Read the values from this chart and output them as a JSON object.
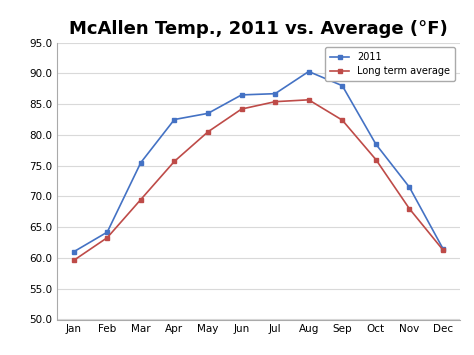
{
  "title": "McAllen Temp., 2011 vs. Average (°F)",
  "months": [
    "Jan",
    "Feb",
    "Mar",
    "Apr",
    "May",
    "Jun",
    "Jul",
    "Aug",
    "Sep",
    "Oct",
    "Nov",
    "Dec"
  ],
  "data_2011": [
    61.0,
    64.2,
    75.5,
    82.5,
    83.5,
    86.5,
    86.7,
    90.3,
    88.0,
    78.5,
    71.5,
    61.5
  ],
  "data_avg": [
    59.6,
    63.3,
    69.5,
    75.7,
    80.5,
    84.2,
    85.4,
    85.7,
    82.4,
    76.0,
    68.0,
    61.3
  ],
  "line_2011_color": "#4472C4",
  "line_avg_color": "#BE4B48",
  "marker": "s",
  "ylim": [
    50.0,
    95.0
  ],
  "yticks": [
    50.0,
    55.0,
    60.0,
    65.0,
    70.0,
    75.0,
    80.0,
    85.0,
    90.0,
    95.0
  ],
  "legend_2011": "2011",
  "legend_avg": "Long term average",
  "bg_color": "#FFFFFF",
  "plot_bg_color": "#FFFFFF",
  "grid_color": "#D9D9D9",
  "title_fontsize": 13,
  "axis_fontsize": 7.5,
  "legend_fontsize": 7
}
